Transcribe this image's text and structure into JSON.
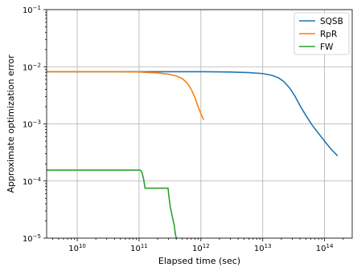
{
  "chart_data": {
    "type": "line",
    "title": "",
    "xlabel": "Elapsed time (sec)",
    "ylabel": "Approximate optimization error",
    "xscale": "log",
    "yscale": "log",
    "xlim": [
      3200000000.0,
      280000000000000.0
    ],
    "ylim": [
      1e-05,
      0.1
    ],
    "grid": true,
    "legend_position": "top-right",
    "x_ticks": [
      {
        "value": 10000000000.0,
        "base": "10",
        "exp": "10"
      },
      {
        "value": 100000000000.0,
        "base": "10",
        "exp": "11"
      },
      {
        "value": 1000000000000.0,
        "base": "10",
        "exp": "12"
      },
      {
        "value": 10000000000000.0,
        "base": "10",
        "exp": "13"
      },
      {
        "value": 100000000000000.0,
        "base": "10",
        "exp": "14"
      }
    ],
    "y_ticks": [
      {
        "value": 1e-05,
        "base": "10",
        "exp": "−5"
      },
      {
        "value": 0.0001,
        "base": "10",
        "exp": "−4"
      },
      {
        "value": 0.001,
        "base": "10",
        "exp": "−3"
      },
      {
        "value": 0.01,
        "base": "10",
        "exp": "−2"
      },
      {
        "value": 0.1,
        "base": "10",
        "exp": "−1"
      }
    ],
    "series": [
      {
        "name": "SQSB",
        "color": "#1f77b4",
        "x": [
          3200000000.0,
          10000000000.0,
          100000000000.0,
          1000000000000.0,
          3000000000000.0,
          6000000000000.0,
          10000000000000.0,
          14000000000000.0,
          18000000000000.0,
          22000000000000.0,
          27000000000000.0,
          33000000000000.0,
          40000000000000.0,
          50000000000000.0,
          63000000000000.0,
          80000000000000.0,
          100000000000000.0,
          125000000000000.0,
          160000000000000.0
        ],
        "y": [
          0.0082,
          0.0082,
          0.0082,
          0.0082,
          0.0081,
          0.0079,
          0.0076,
          0.0071,
          0.0064,
          0.0055,
          0.0043,
          0.0031,
          0.0021,
          0.0014,
          0.00095,
          0.00068,
          0.0005,
          0.00037,
          0.00028
        ]
      },
      {
        "name": "RpR",
        "color": "#ff7f0e",
        "x": [
          3200000000.0,
          10000000000.0,
          50000000000.0,
          100000000000.0,
          200000000000.0,
          300000000000.0,
          400000000000.0,
          500000000000.0,
          600000000000.0,
          700000000000.0,
          800000000000.0,
          900000000000.0,
          1000000000000.0,
          1100000000000.0
        ],
        "y": [
          0.0082,
          0.0082,
          0.0082,
          0.0081,
          0.0078,
          0.0074,
          0.0069,
          0.0062,
          0.0052,
          0.004,
          0.0029,
          0.002,
          0.0015,
          0.0012
        ]
      },
      {
        "name": "FW",
        "color": "#2ca02c",
        "x": [
          3200000000.0,
          10000000000.0,
          50000000000.0,
          105000000000.0,
          112000000000.0,
          118000000000.0,
          125000000000.0,
          200000000000.0,
          295000000000.0,
          300000000000.0,
          320000000000.0,
          350000000000.0,
          370000000000.0,
          385000000000.0,
          400000000000.0
        ],
        "y": [
          0.000155,
          0.000155,
          0.000155,
          0.000155,
          0.00014,
          0.00011,
          7.5e-05,
          7.5e-05,
          7.5e-05,
          6e-05,
          3.5e-05,
          2.2e-05,
          1.7e-05,
          1.2e-05,
          1e-05
        ]
      }
    ]
  }
}
